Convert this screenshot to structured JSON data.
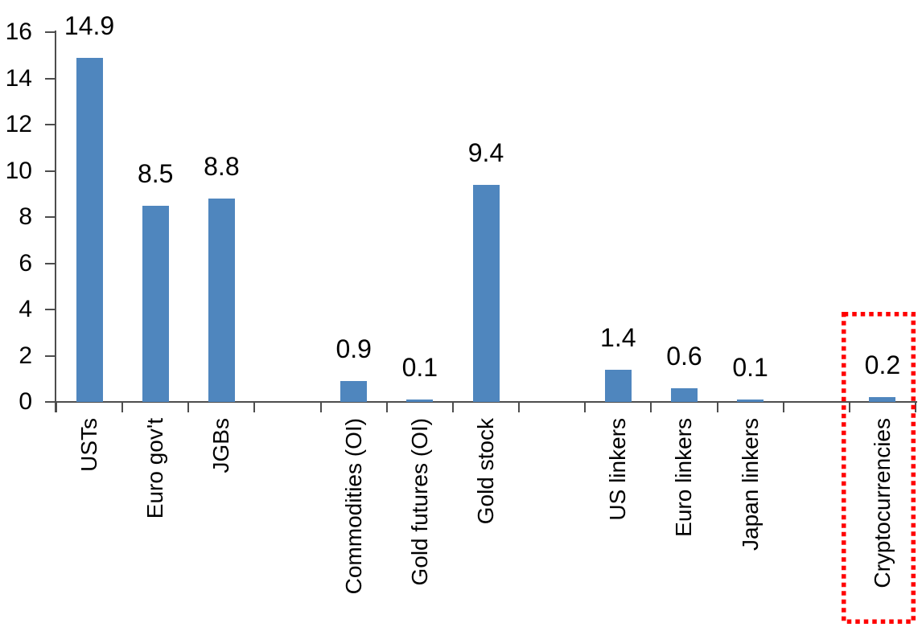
{
  "chart_data": {
    "type": "bar",
    "title": "",
    "xlabel": "",
    "ylabel": "",
    "categories": [
      "USTs",
      "Euro gov't",
      "JGBs",
      "Commodities (OI)",
      "Gold futures (OI)",
      "Gold stock",
      "US linkers",
      "Euro linkers",
      "Japan linkers",
      "Cryptocurrencies"
    ],
    "values": [
      14.9,
      8.5,
      8.8,
      0.9,
      0.1,
      9.4,
      1.4,
      0.6,
      0.1,
      0.2
    ],
    "data_labels": [
      "14.9",
      "8.5",
      "8.8",
      "0.9",
      "0.1",
      "9.4",
      "1.4",
      "0.6",
      "0.1",
      "0.2"
    ],
    "slots": [
      0,
      1,
      2,
      4,
      5,
      6,
      8,
      9,
      10,
      12
    ],
    "total_slots": 13,
    "y_ticks": [
      0,
      2,
      4,
      6,
      8,
      10,
      12,
      14,
      16
    ],
    "y_tick_labels": [
      "0",
      "2",
      "4",
      "6",
      "8",
      "10",
      "12",
      "14",
      "16"
    ],
    "ylim": [
      0,
      16
    ],
    "grid": false,
    "legend": "none",
    "bar_color": "#4f86be",
    "axis_color": "#4d4d4d",
    "text_color": "#000000",
    "highlight": {
      "category": "Cryptocurrencies",
      "shape": "dotted-rectangle",
      "color": "#ff0000"
    }
  }
}
